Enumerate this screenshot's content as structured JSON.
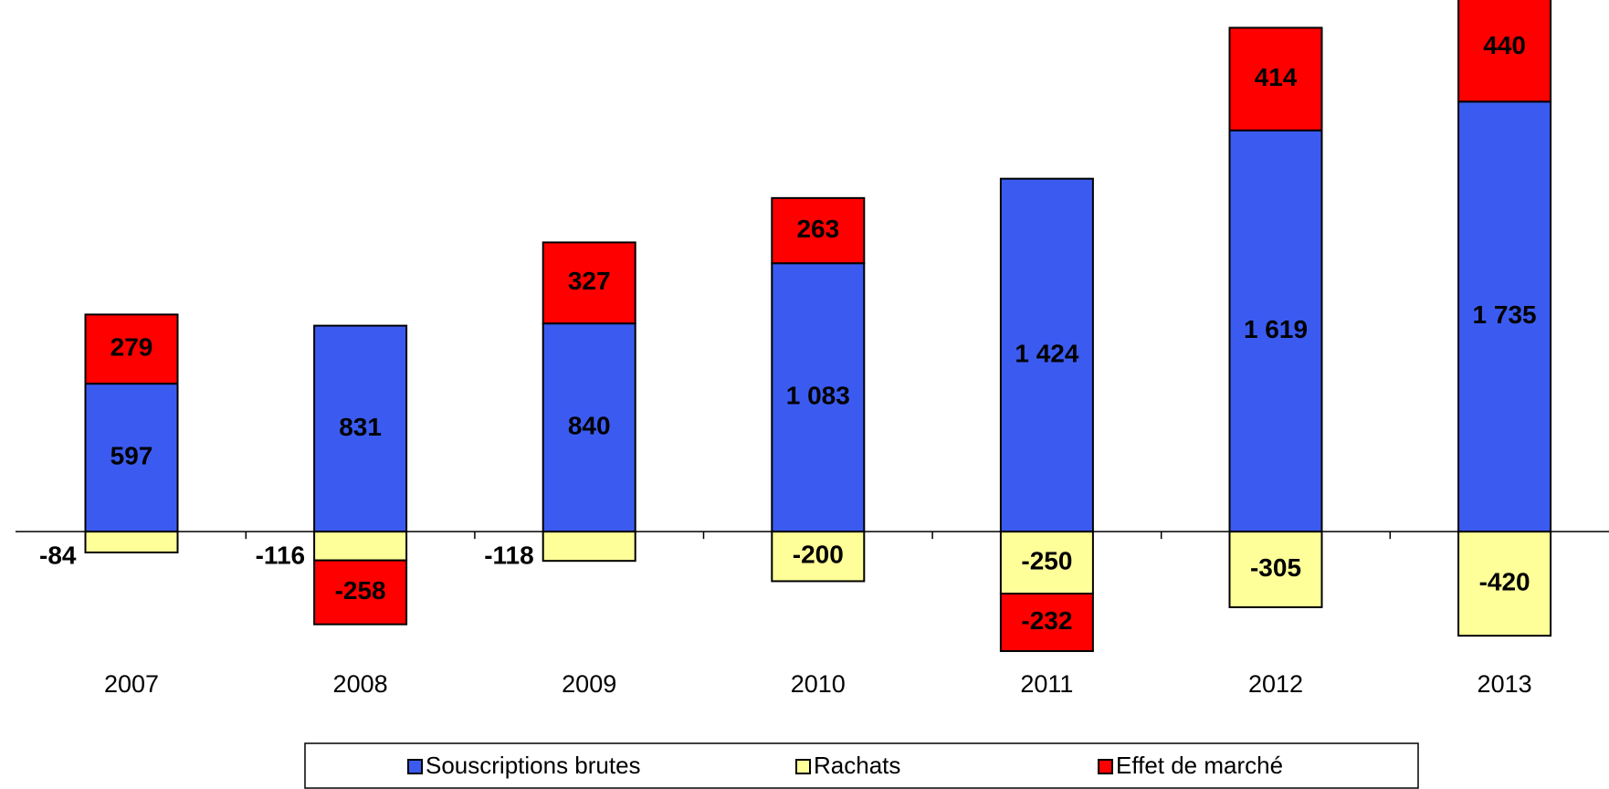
{
  "chart_data": {
    "type": "bar",
    "stacked": true,
    "categories": [
      "2007",
      "2008",
      "2009",
      "2010",
      "2011",
      "2012",
      "2013"
    ],
    "series": [
      {
        "name": "Souscriptions brutes",
        "color": "#3b5bf0",
        "values": [
          597,
          831,
          840,
          1083,
          1424,
          1619,
          1735
        ],
        "value_labels": [
          "597",
          "831",
          "840",
          "1 083",
          "1 424",
          "1 619",
          "1 735"
        ]
      },
      {
        "name": "Rachats",
        "color": "#ffff99",
        "values": [
          -84,
          -116,
          -118,
          -200,
          -250,
          -305,
          -420
        ]
      },
      {
        "name": "Effet de marché",
        "color": "#ff0000",
        "values": [
          279,
          -258,
          327,
          263,
          -232,
          414,
          440
        ]
      }
    ],
    "ylim": [
      -600,
      2145
    ]
  }
}
